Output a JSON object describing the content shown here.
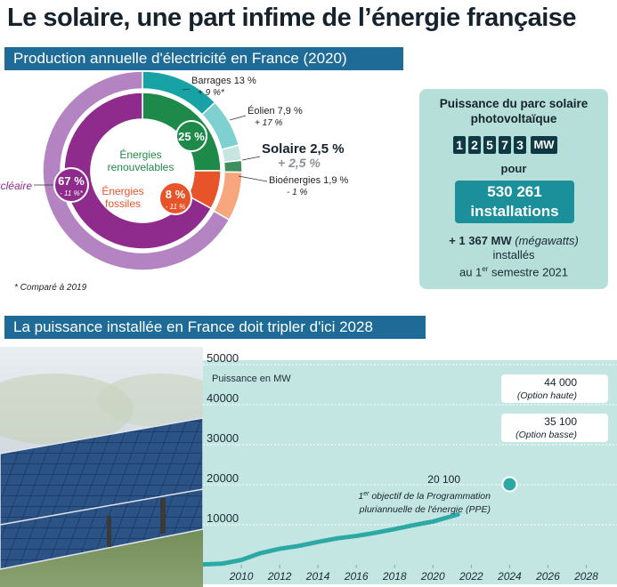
{
  "title": "Le solaire, une part infime de l’énergie française",
  "section1_title": "Production annuelle d'électricité en France (2020)",
  "section2_title": "La puissance installée en France doit tripler d'ici 2028",
  "colors": {
    "band": "#1f6b97",
    "nucleaire": "#8e2b8c",
    "nucleaire_outer": "#b384c1",
    "renouvelables": "#1e8a4a",
    "fossiles": "#e8542a",
    "barrages": "#17a2a6",
    "eolien": "#7fd0d0",
    "solaire": "#c8e6e1",
    "bioenergies": "#3f8f5c",
    "panel_bg": "#b5dfd8",
    "line": "#2ca8a5"
  },
  "donut": {
    "nucleaire": {
      "label": "Nucléaire",
      "pct": "67 %",
      "change": "- 11 %*"
    },
    "renouvelables": {
      "label_1": "Énergies",
      "label_2": "renouvelables",
      "pct": "25 %"
    },
    "fossiles": {
      "label_1": "Énergies",
      "label_2": "fossiles",
      "pct": "8 %",
      "change": "- 11 %"
    },
    "barrages": {
      "label": "Barrages 13 %",
      "change": "+ 9 %*"
    },
    "eolien": {
      "label": "Éolien 7,9 %",
      "change": "+ 17 %"
    },
    "solaire": {
      "label": "Solaire 2,5 %",
      "change": "+ 2,5 %"
    },
    "bioenergies": {
      "label": "Bioénergies 1,9 %",
      "change": "- 1 %"
    },
    "footnote": "* Comparé à 2019"
  },
  "panel": {
    "title_1": "Puissance du parc solaire",
    "title_2": "photovoltaïque",
    "digits": [
      "1",
      "2",
      "5",
      "7",
      "3"
    ],
    "unit": "MW",
    "pour": "pour",
    "installations_value": "530 261",
    "installations_label": "installations",
    "added_value": "+ 1 367 MW",
    "added_unit": "(mégawatts)",
    "added_line2": "installés",
    "added_line3_a": "au 1",
    "added_line3_sup": "er",
    "added_line3_b": " semestre 2021"
  },
  "chart_data": [
    {
      "type": "pie",
      "title": "Production annuelle d'électricité en France (2020)",
      "categories": [
        "Nucléaire",
        "Énergies renouvelables",
        "Énergies fossiles"
      ],
      "values": [
        67,
        25,
        8
      ],
      "sub_categories": [
        "Barrages",
        "Éolien",
        "Solaire",
        "Bioénergies"
      ],
      "sub_values": [
        13,
        7.9,
        2.5,
        1.9
      ],
      "changes": {
        "Nucléaire": "- 11 %",
        "Énergies fossiles": "- 11 %",
        "Barrages": "+ 9 %",
        "Éolien": "+ 17 %",
        "Solaire": "+ 2,5 %",
        "Bioénergies": "- 1 %"
      }
    },
    {
      "type": "line",
      "title": "La puissance installée en France doit tripler d'ici 2028",
      "ylabel": "Puissance en MW",
      "xlabel": "",
      "ylim": [
        0,
        50000
      ],
      "xlim": [
        2008,
        2029
      ],
      "yticks": [
        10000,
        20000,
        30000,
        40000,
        50000
      ],
      "ytick_labels": [
        "10000",
        "20000",
        "30000",
        "40000",
        "50000"
      ],
      "xticks": [
        2010,
        2012,
        2014,
        2016,
        2018,
        2020,
        2022,
        2024,
        2026,
        2028
      ],
      "grid": true,
      "series": [
        {
          "x": [
            2008,
            2009,
            2010,
            2011,
            2012,
            2013,
            2014,
            2015,
            2016,
            2017,
            2018,
            2019,
            2020,
            2021.3
          ],
          "values": [
            100,
            300,
            1200,
            2900,
            4000,
            4700,
            5700,
            6600,
            7200,
            8000,
            8900,
            9900,
            10800,
            12570
          ]
        }
      ],
      "targets": [
        {
          "x": 2024,
          "value": 20100,
          "label": "20 100",
          "note_1": "1",
          "note_sup": "er",
          "note_rest": " objectif de la Programmation",
          "note_2": "pluriannuelle de l'énergie (PPE)"
        },
        {
          "x": 2028,
          "value": 35100,
          "label": "35 100",
          "note": "(Option basse)"
        },
        {
          "x": 2028,
          "value": 44000,
          "label": "44 000",
          "note": "(Option haute)"
        }
      ]
    }
  ]
}
